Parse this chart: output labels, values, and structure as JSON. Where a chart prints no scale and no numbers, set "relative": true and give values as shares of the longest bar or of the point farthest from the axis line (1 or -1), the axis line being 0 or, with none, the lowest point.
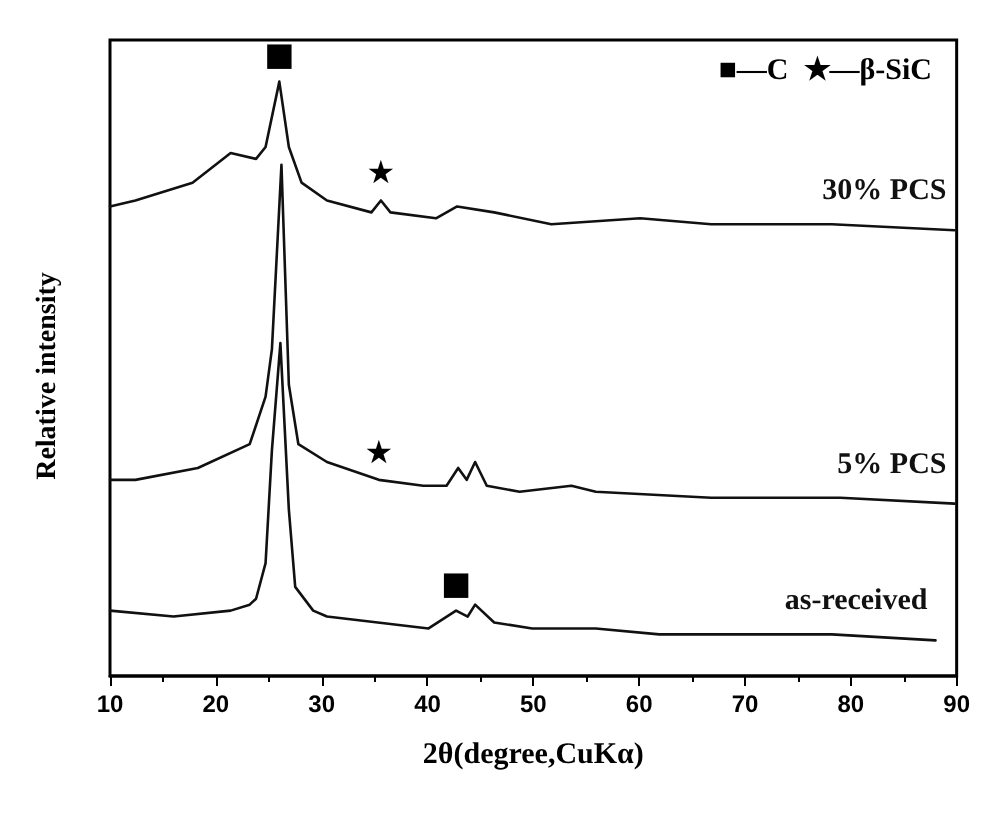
{
  "chart_data": {
    "type": "line",
    "relative": true,
    "xlabel": "2θ(degree,CuKα)",
    "ylabel": "Relative intensity",
    "xlim": [
      10,
      90
    ],
    "xticks": [
      10,
      20,
      30,
      40,
      50,
      60,
      70,
      80,
      90
    ],
    "annotations": [
      "■—C  ★—β-SiC",
      {
        "text": "■",
        "x": 26,
        "y": 1
      },
      {
        "text": "★",
        "x": 35.6,
        "y": 0.8
      },
      {
        "text": "★",
        "x": 35.4,
        "y": 0.33
      },
      {
        "text": "■",
        "x": 42.7,
        "y": 0.11
      }
    ],
    "series": [
      {
        "name": "30% PCS",
        "color": "#111111",
        "x": [
          10,
          12.4,
          17.8,
          21.4,
          23.8,
          24.7,
          26,
          26.9,
          28.1,
          30.5,
          34.7,
          35.6,
          36.5,
          40.8,
          42.8,
          46.3,
          51.7,
          60.1,
          66.8,
          78.2,
          89.8
        ],
        "values": [
          0.79,
          0.8,
          0.83,
          0.88,
          0.87,
          0.89,
          1,
          0.89,
          0.83,
          0.8,
          0.78,
          0.8,
          0.78,
          0.77,
          0.79,
          0.78,
          0.76,
          0.77,
          0.76,
          0.76,
          0.75
        ]
      },
      {
        "name": "5% PCS",
        "color": "#111111",
        "x": [
          10,
          12.4,
          18.3,
          23.2,
          24.7,
          25.3,
          26.2,
          26.9,
          27.8,
          30.5,
          35.4,
          39.6,
          41.8,
          42.9,
          43.7,
          44.5,
          45.6,
          48.7,
          53.6,
          55.9,
          66.8,
          79,
          89.8
        ],
        "values": [
          0.33,
          0.33,
          0.35,
          0.39,
          0.47,
          0.55,
          0.86,
          0.49,
          0.39,
          0.36,
          0.33,
          0.32,
          0.32,
          0.35,
          0.33,
          0.36,
          0.32,
          0.31,
          0.32,
          0.31,
          0.3,
          0.3,
          0.29
        ]
      },
      {
        "name": "as-received",
        "color": "#111111",
        "x": [
          10,
          16,
          21.4,
          23.2,
          23.8,
          24.7,
          25.3,
          26.1,
          26.9,
          27.5,
          29.2,
          30.5,
          40.1,
          42.7,
          43.8,
          44.5,
          46.3,
          49.9,
          52.8,
          55.9,
          61.9,
          78.2,
          88
        ],
        "values": [
          0.11,
          0.1,
          0.11,
          0.12,
          0.13,
          0.19,
          0.38,
          0.56,
          0.28,
          0.15,
          0.11,
          0.1,
          0.08,
          0.11,
          0.1,
          0.12,
          0.09,
          0.08,
          0.08,
          0.08,
          0.07,
          0.07,
          0.06
        ]
      }
    ]
  }
}
